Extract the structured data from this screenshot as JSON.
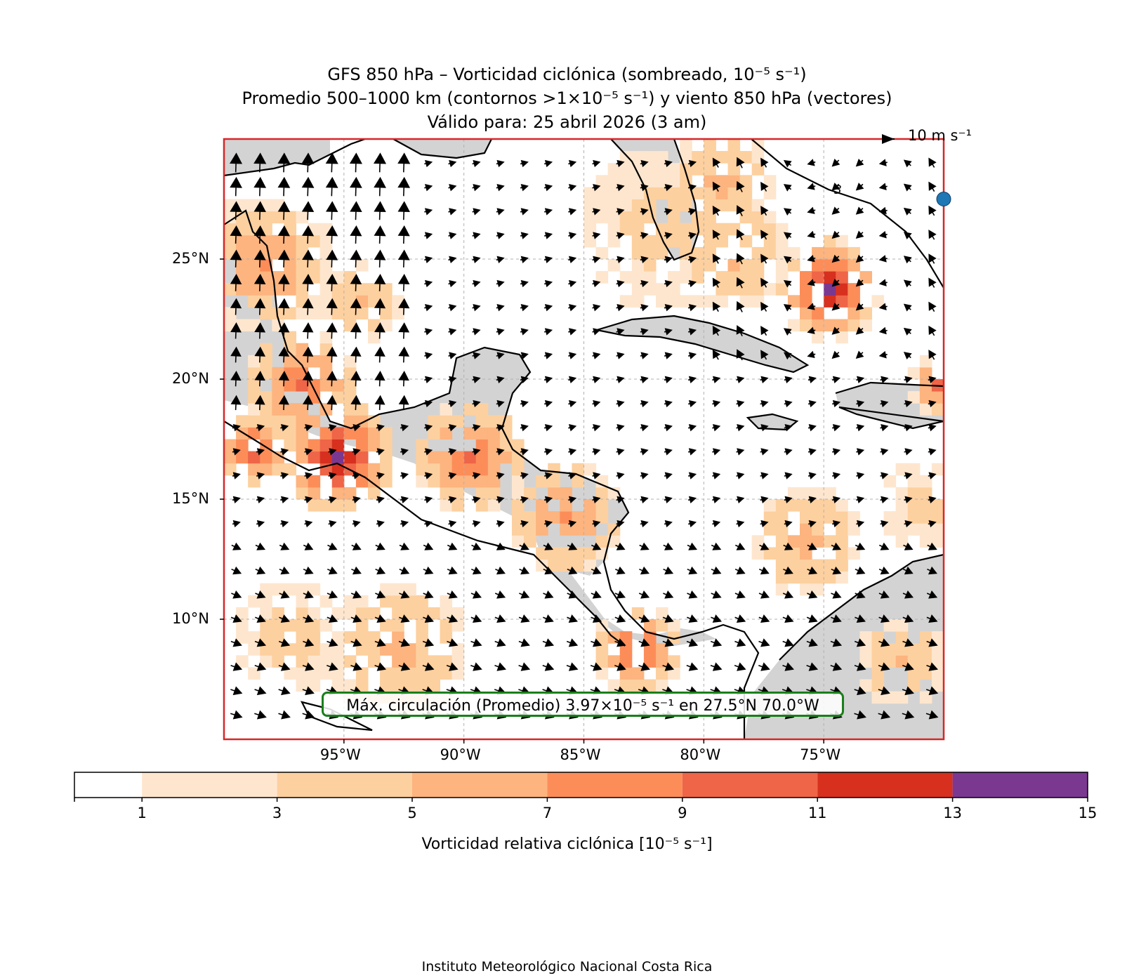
{
  "title": {
    "line1": "GFS 850 hPa – Vorticidad ciclónica (sombreado, 10⁻⁵ s⁻¹)",
    "line2": "Promedio 500–1000 km (contornos >1×10⁻⁵ s⁻¹) y viento 850 hPa (vectores)",
    "line3": "Válido para: 25 abril 2026 (3 am)"
  },
  "reference_vector": {
    "label": "10 m s⁻¹"
  },
  "max_circulation_label": "Máx. circulación (Promedio) 3.97×10⁻⁵ s⁻¹ en 27.5°N 70.0°W",
  "max_circulation": {
    "value": 3.97,
    "lat": 27.5,
    "lon": -70.0
  },
  "contour_label": "3",
  "axes": {
    "lon_range": [
      -100,
      -70
    ],
    "lat_range": [
      5,
      30
    ],
    "lon_ticks": [
      {
        "value": -95,
        "label": "95°W"
      },
      {
        "value": -90,
        "label": "90°W"
      },
      {
        "value": -85,
        "label": "85°W"
      },
      {
        "value": -80,
        "label": "80°W"
      },
      {
        "value": -75,
        "label": "75°W"
      }
    ],
    "lat_ticks": [
      {
        "value": 25,
        "label": "25°N"
      },
      {
        "value": 20,
        "label": "20°N"
      },
      {
        "value": 15,
        "label": "15°N"
      },
      {
        "value": 10,
        "label": "10°N"
      }
    ]
  },
  "colorbar": {
    "label": "Vorticidad relativa ciclónica [10⁻⁵ s⁻¹]",
    "ticks": [
      "1",
      "3",
      "5",
      "7",
      "9",
      "11",
      "13",
      "15"
    ],
    "levels": [
      0,
      1,
      3,
      5,
      7,
      9,
      11,
      13,
      15
    ],
    "colors": [
      "#ffffff",
      "#fee6ce",
      "#fdd09f",
      "#fdb47f",
      "#fc8d59",
      "#ef6548",
      "#d7301f",
      "#7b3891"
    ]
  },
  "colors": {
    "land": "#d3d3d3",
    "frame": "#d62728",
    "max_box": "#1a7f1a",
    "max_marker": "#1f77b4"
  },
  "credit": "Instituto Meteorológico Nacional Costa Rica"
}
